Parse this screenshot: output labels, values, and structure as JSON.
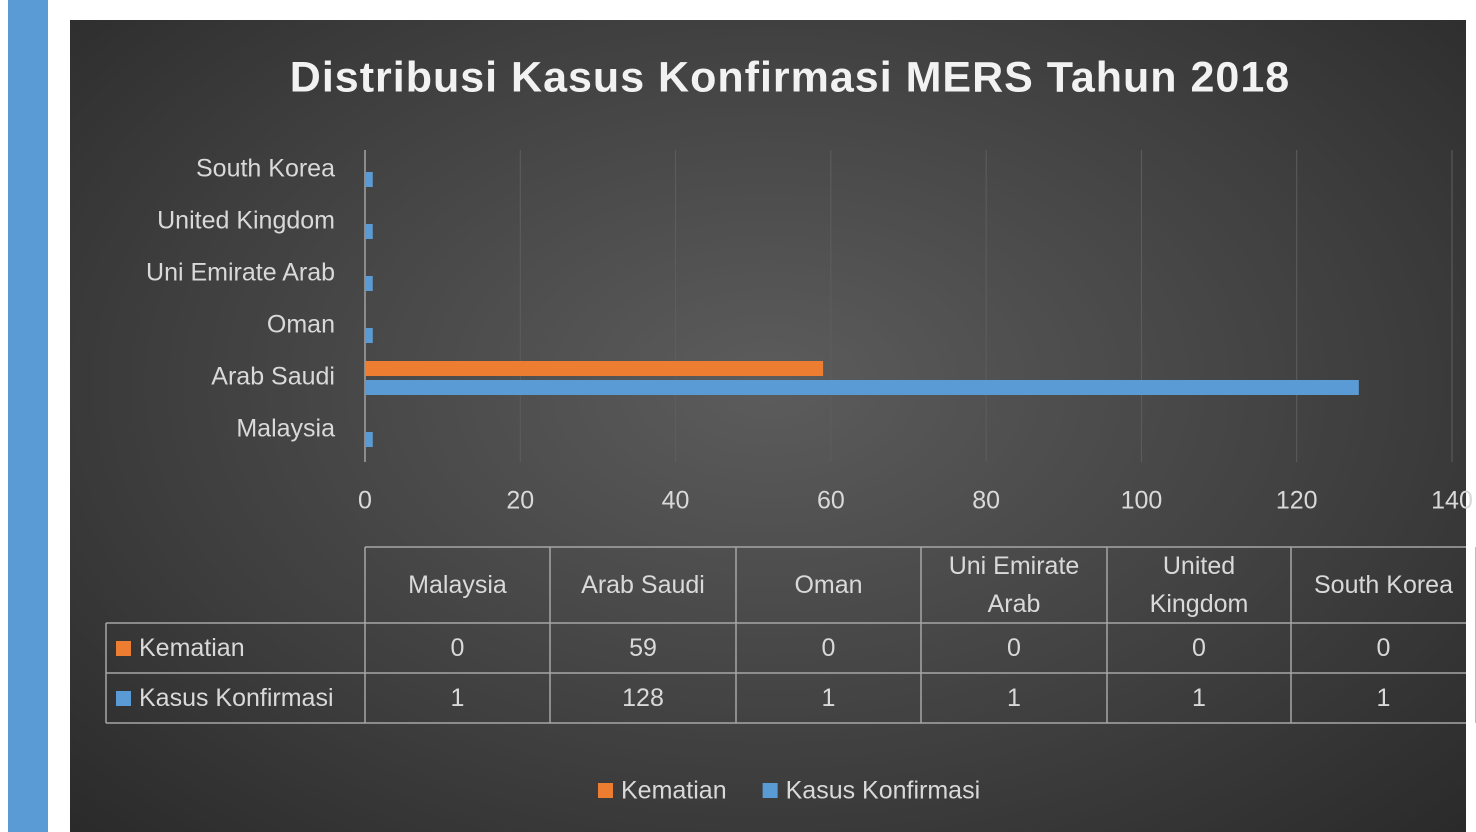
{
  "chart_data": {
    "type": "bar",
    "orientation": "horizontal",
    "title": "Distribusi Kasus Konfirmasi MERS Tahun 2018",
    "categories": [
      "Malaysia",
      "Arab Saudi",
      "Oman",
      "Uni Emirate Arab",
      "United Kingdom",
      "South Korea"
    ],
    "series": [
      {
        "name": "Kematian",
        "color": "#ed7d31",
        "values": [
          0,
          59,
          0,
          0,
          0,
          0
        ]
      },
      {
        "name": "Kasus Konfirmasi",
        "color": "#5b9bd5",
        "values": [
          1,
          128,
          1,
          1,
          1,
          1
        ]
      }
    ],
    "xlim": [
      0,
      140
    ],
    "xticks": [
      0,
      20,
      40,
      60,
      80,
      100,
      120,
      140
    ],
    "grid": true,
    "legend": "bottom",
    "data_table": true
  }
}
